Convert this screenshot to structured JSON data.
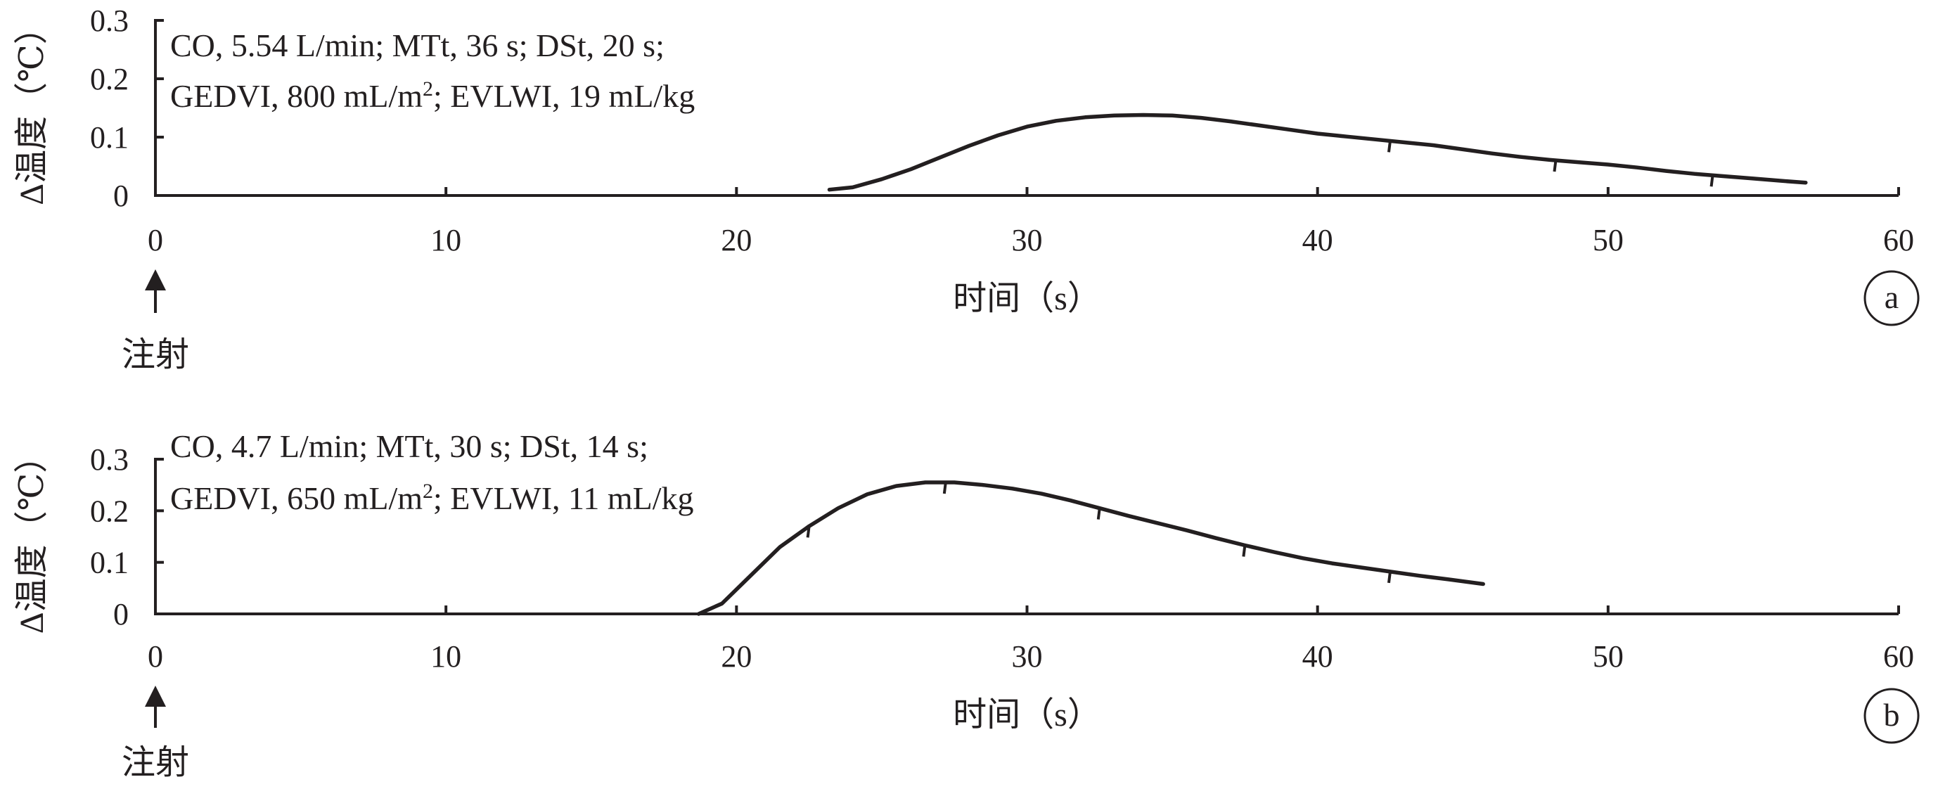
{
  "chart_data": [
    {
      "id": "a",
      "type": "line",
      "panel_label": "a",
      "xlabel": "时间（s）",
      "ylabel": "Δ温度（℃）",
      "xlim": [
        0,
        60
      ],
      "ylim": [
        0,
        0.3
      ],
      "x_ticks": [
        0,
        10,
        20,
        30,
        40,
        50,
        60
      ],
      "y_ticks": [
        0,
        0.1,
        0.2,
        0.3
      ],
      "x_tick_labels": [
        "0",
        "10",
        "20",
        "30",
        "40",
        "50",
        "60"
      ],
      "y_tick_labels": [
        "0",
        "0.1",
        "0.2",
        "0.3"
      ],
      "annotation": {
        "line1": "CO, 5.54 L/min; MTt, 36 s; DSt, 20 s;",
        "line2_prefix": "GEDVI, 800 mL/m",
        "line2_sup": "2",
        "line2_suffix": "; EVLWI, 19 mL/kg"
      },
      "injection": {
        "x": 0,
        "label": "注射"
      },
      "curve_ticks_x": [
        42.5,
        48.2,
        53.6
      ],
      "series": [
        {
          "x": [
            23.2,
            24,
            25,
            26,
            27,
            28,
            29,
            30,
            31,
            32,
            33,
            34,
            35,
            36,
            37,
            38,
            39,
            40,
            41,
            42,
            43,
            44,
            45,
            46,
            47,
            48,
            49,
            50,
            51,
            52,
            53,
            54,
            55,
            56,
            56.8
          ],
          "y": [
            0.01,
            0.014,
            0.028,
            0.045,
            0.065,
            0.085,
            0.103,
            0.118,
            0.128,
            0.134,
            0.137,
            0.138,
            0.137,
            0.133,
            0.127,
            0.12,
            0.113,
            0.106,
            0.101,
            0.096,
            0.091,
            0.086,
            0.079,
            0.072,
            0.066,
            0.061,
            0.057,
            0.053,
            0.048,
            0.042,
            0.037,
            0.033,
            0.029,
            0.025,
            0.022
          ]
        }
      ]
    },
    {
      "id": "b",
      "type": "line",
      "panel_label": "b",
      "xlabel": "时间（s）",
      "ylabel": "Δ温度（℃）",
      "xlim": [
        0,
        60
      ],
      "ylim": [
        0,
        0.3
      ],
      "x_ticks": [
        0,
        10,
        20,
        30,
        40,
        50,
        60
      ],
      "y_ticks": [
        0,
        0.1,
        0.2,
        0.3
      ],
      "x_tick_labels": [
        "0",
        "10",
        "20",
        "30",
        "40",
        "50",
        "60"
      ],
      "y_tick_labels": [
        "0",
        "0.1",
        "0.2",
        "0.3"
      ],
      "annotation": {
        "line1": "CO, 4.7 L/min; MTt, 30 s; DSt, 14 s;",
        "line2_prefix": "GEDVI, 650 mL/m",
        "line2_sup": "2",
        "line2_suffix": "; EVLWI, 11 mL/kg"
      },
      "injection": {
        "x": 0,
        "label": "注射"
      },
      "curve_ticks_x": [
        22.5,
        27.2,
        32.5,
        37.5,
        42.5
      ],
      "series": [
        {
          "x": [
            18.7,
            19.5,
            20.5,
            21.5,
            22.5,
            23.5,
            24.5,
            25.5,
            26.5,
            27.5,
            28.5,
            29.5,
            30.5,
            31.5,
            32.5,
            33.5,
            34.5,
            35.5,
            36.5,
            37.5,
            38.5,
            39.5,
            40.5,
            41.5,
            42.5,
            43.5,
            44.5,
            45.7
          ],
          "y": [
            0.0,
            0.02,
            0.075,
            0.13,
            0.17,
            0.205,
            0.232,
            0.248,
            0.255,
            0.255,
            0.25,
            0.243,
            0.233,
            0.22,
            0.205,
            0.19,
            0.176,
            0.162,
            0.147,
            0.133,
            0.12,
            0.108,
            0.098,
            0.09,
            0.082,
            0.074,
            0.067,
            0.058
          ]
        }
      ]
    }
  ]
}
